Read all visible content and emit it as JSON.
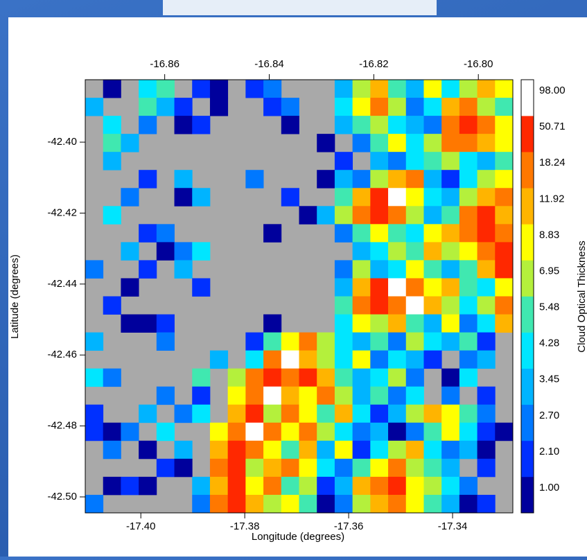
{
  "chart_data": {
    "type": "heatmap",
    "xlabel": "Longitude (degrees)",
    "ylabel": "Latitude (degrees)",
    "colorbar_label": "Cloud Optical Thickness",
    "xlim": [
      -17.4107,
      -17.3284
    ],
    "xticks": [
      {
        "value": -17.4,
        "label": "-17.40"
      },
      -17.38,
      -17.36,
      -17.34
    ],
    "x2lim": [
      -16.8752,
      -16.7934
    ],
    "x2ticks": [
      -16.86,
      -16.84,
      -16.82,
      {
        "value": -16.8,
        "label": "-16.80"
      }
    ],
    "ylim": [
      -42.5045,
      -42.3824
    ],
    "yticks": [
      {
        "value": -42.4,
        "label": "-42.40"
      },
      -42.42,
      -42.44,
      -42.46,
      -42.48,
      {
        "value": -42.5,
        "label": "-42.50"
      }
    ],
    "missing_color": "#a9a9a9",
    "levels": [
      {
        "value": 1,
        "label": "1.00"
      },
      {
        "value": 2.1,
        "label": "2.10"
      },
      {
        "value": 2.7,
        "label": "2.70"
      },
      {
        "value": 3.45,
        "label": "3.45"
      },
      {
        "value": 4.28,
        "label": "4.28"
      },
      {
        "value": 5.48,
        "label": "5.48"
      },
      {
        "value": 6.95,
        "label": "6.95"
      },
      {
        "value": 8.83,
        "label": "8.83"
      },
      {
        "value": 11.92,
        "label": "11.92"
      },
      {
        "value": 18.24,
        "label": "18.24"
      },
      {
        "value": 50.71,
        "label": "50.71"
      },
      {
        "value": 98,
        "label": "98.00"
      }
    ],
    "level_colors": [
      "#00009c",
      "#0030ff",
      "#0078ff",
      "#00b4ff",
      "#00e6ff",
      "#40e8b0",
      "#b4f03c",
      "#ffff00",
      "#ffb400",
      "#ff7800",
      "#ff2800",
      "#ffffff"
    ],
    "z": [
      [
        null,
        1,
        null,
        4.28,
        5.48,
        null,
        2.1,
        1,
        null,
        2.1,
        2.7,
        null,
        null,
        null,
        3.45,
        6.95,
        11.92,
        5.48,
        3.45,
        8.83,
        4.28,
        6.95,
        11.92,
        8.83
      ],
      [
        3.45,
        null,
        null,
        5.48,
        3.45,
        2.1,
        null,
        1,
        null,
        null,
        2.1,
        2.7,
        null,
        null,
        4.28,
        8.83,
        18.24,
        6.95,
        2.7,
        4.28,
        11.92,
        18.24,
        6.95,
        5.48
      ],
      [
        null,
        4.28,
        null,
        2.7,
        null,
        1,
        2.1,
        null,
        null,
        null,
        null,
        1,
        null,
        null,
        3.45,
        5.48,
        6.95,
        4.28,
        3.45,
        2.7,
        18.24,
        50.71,
        18.24,
        8.83
      ],
      [
        null,
        5.48,
        3.45,
        null,
        null,
        null,
        null,
        null,
        null,
        null,
        null,
        null,
        null,
        1,
        null,
        2.7,
        5.48,
        8.83,
        4.28,
        6.95,
        18.24,
        18.24,
        11.92,
        8.83
      ],
      [
        null,
        3.45,
        null,
        null,
        null,
        null,
        null,
        null,
        null,
        null,
        null,
        null,
        null,
        null,
        2.1,
        null,
        3.45,
        2.7,
        4.28,
        5.48,
        6.95,
        4.28,
        3.45,
        5.48
      ],
      [
        null,
        null,
        null,
        2.1,
        null,
        3.45,
        null,
        null,
        null,
        2.7,
        null,
        null,
        null,
        1,
        3.45,
        2.7,
        6.95,
        11.92,
        18.24,
        3.45,
        2.1,
        4.28,
        6.95,
        8.83
      ],
      [
        null,
        null,
        2.7,
        null,
        null,
        1,
        3.45,
        null,
        null,
        null,
        null,
        2.1,
        null,
        null,
        5.48,
        11.92,
        50.71,
        98,
        8.83,
        4.28,
        3.45,
        6.95,
        11.92,
        18.24
      ],
      [
        null,
        4.28,
        null,
        null,
        null,
        null,
        null,
        null,
        null,
        null,
        null,
        null,
        1,
        3.45,
        6.95,
        18.24,
        50.71,
        18.24,
        6.95,
        3.45,
        5.48,
        18.24,
        50.71,
        11.92
      ],
      [
        null,
        null,
        null,
        2.1,
        2.7,
        null,
        null,
        null,
        null,
        null,
        1,
        null,
        null,
        null,
        2.7,
        5.48,
        8.83,
        5.48,
        4.28,
        8.83,
        11.92,
        18.24,
        50.71,
        18.24
      ],
      [
        null,
        null,
        3.45,
        null,
        1,
        2.7,
        4.28,
        null,
        null,
        null,
        null,
        null,
        null,
        null,
        null,
        3.45,
        4.28,
        6.95,
        5.48,
        11.92,
        6.95,
        8.83,
        18.24,
        50.71
      ],
      [
        2.7,
        null,
        null,
        2.1,
        null,
        3.45,
        null,
        null,
        null,
        null,
        null,
        null,
        null,
        null,
        2.7,
        6.95,
        3.45,
        4.28,
        8.83,
        5.48,
        3.45,
        5.48,
        11.92,
        50.71
      ],
      [
        null,
        null,
        1,
        null,
        null,
        null,
        2.1,
        null,
        null,
        null,
        null,
        null,
        null,
        null,
        3.45,
        11.92,
        50.71,
        98,
        18.24,
        8.83,
        11.92,
        5.48,
        4.28,
        8.83
      ],
      [
        null,
        2.1,
        null,
        null,
        null,
        null,
        null,
        null,
        null,
        null,
        null,
        null,
        null,
        null,
        5.48,
        18.24,
        50.71,
        18.24,
        98,
        11.92,
        6.95,
        4.28,
        6.95,
        18.24
      ],
      [
        null,
        null,
        1,
        1,
        2.1,
        null,
        null,
        null,
        null,
        null,
        1,
        null,
        null,
        null,
        4.28,
        8.83,
        6.95,
        11.92,
        5.48,
        3.45,
        8.83,
        2.7,
        4.28,
        11.92
      ],
      [
        3.45,
        null,
        null,
        null,
        2.7,
        null,
        null,
        null,
        null,
        2.1,
        5.48,
        8.83,
        18.24,
        6.95,
        4.28,
        3.45,
        5.48,
        2.7,
        6.95,
        4.28,
        3.45,
        5.48,
        2.1,
        null
      ],
      [
        null,
        null,
        null,
        null,
        null,
        null,
        null,
        3.45,
        null,
        4.28,
        18.24,
        98,
        11.92,
        6.95,
        4.28,
        8.83,
        2.7,
        4.28,
        3.45,
        2.1,
        null,
        2.7,
        3.45,
        null
      ],
      [
        4.28,
        2.7,
        null,
        null,
        null,
        null,
        5.48,
        null,
        6.95,
        18.24,
        50.71,
        18.24,
        50.71,
        11.92,
        5.48,
        3.45,
        4.28,
        6.95,
        2.7,
        null,
        1,
        4.28,
        null,
        null
      ],
      [
        null,
        null,
        null,
        null,
        2.7,
        null,
        2.1,
        null,
        8.83,
        18.24,
        98,
        11.92,
        8.83,
        18.24,
        6.95,
        3.45,
        5.48,
        2.7,
        4.28,
        null,
        2.7,
        null,
        2.1,
        null
      ],
      [
        2.1,
        null,
        null,
        3.45,
        null,
        2.7,
        4.28,
        null,
        11.92,
        50.71,
        6.95,
        18.24,
        8.83,
        5.48,
        11.92,
        4.28,
        2.1,
        3.45,
        6.95,
        11.92,
        8.83,
        5.48,
        2.7,
        null
      ],
      [
        2.1,
        1,
        2.7,
        null,
        4.28,
        null,
        null,
        8.83,
        18.24,
        98,
        18.24,
        8.83,
        18.24,
        6.95,
        4.28,
        2.7,
        3.45,
        1,
        2.7,
        5.48,
        8.83,
        4.28,
        2.1,
        1
      ],
      [
        null,
        2.7,
        null,
        1,
        null,
        3.45,
        null,
        11.92,
        50.71,
        18.24,
        8.83,
        5.48,
        11.92,
        3.45,
        8.83,
        2.1,
        4.28,
        6.95,
        11.92,
        4.28,
        2.7,
        3.45,
        1,
        null
      ],
      [
        null,
        null,
        null,
        null,
        2.1,
        1,
        null,
        18.24,
        50.71,
        6.95,
        11.92,
        18.24,
        8.83,
        4.28,
        2.7,
        5.48,
        8.83,
        18.24,
        6.95,
        5.48,
        3.45,
        null,
        2.1,
        null
      ],
      [
        null,
        1,
        2.1,
        1,
        null,
        null,
        3.45,
        11.92,
        50.71,
        8.83,
        18.24,
        5.48,
        6.95,
        2.1,
        3.45,
        11.92,
        18.24,
        50.71,
        8.83,
        6.95,
        4.28,
        2.7,
        null,
        null
      ],
      [
        2.7,
        null,
        null,
        null,
        null,
        null,
        2.7,
        18.24,
        50.71,
        11.92,
        6.95,
        8.83,
        5.48,
        1,
        2.7,
        6.95,
        11.92,
        18.24,
        8.83,
        5.48,
        3.45,
        1,
        2.1,
        null
      ]
    ]
  }
}
